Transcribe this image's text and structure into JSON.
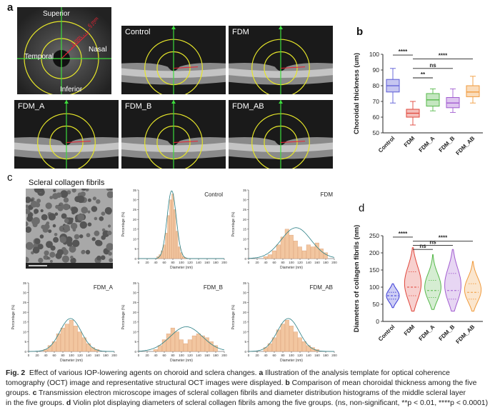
{
  "panel_a": {
    "letter": "a",
    "fundus": {
      "superior": "Superior",
      "nasal": "Nasal",
      "temporal": "Temporal",
      "inferior": "Inferior",
      "ring1": "6 mm",
      "ring2": "3 mm"
    },
    "oct_labels": [
      "Control",
      "FDM",
      "FDM_A",
      "FDM_B",
      "FDM_AB"
    ]
  },
  "panel_b": {
    "letter": "b",
    "ylabel": "Choroidal thickness (um)",
    "yticks": [
      "100",
      "90",
      "80",
      "70",
      "60",
      "50"
    ],
    "categories": [
      "Control",
      "FDM",
      "FDM_A",
      "FDM_B",
      "FDM_AB"
    ],
    "sig": [
      "****",
      "****",
      "ns",
      "**"
    ]
  },
  "panel_c": {
    "letter": "c",
    "tem_title": "Scleral collagen fibrils",
    "ylabel": "Percentage (%)",
    "xlabel": "Diameter (nm)",
    "hist_titles": [
      "Control",
      "FDM",
      "FDM_A",
      "FDM_B",
      "FDM_AB"
    ],
    "xticks": [
      "0",
      "20",
      "40",
      "60",
      "80",
      "100",
      "120",
      "140",
      "160",
      "180",
      "200"
    ],
    "yticks": [
      "35",
      "30",
      "25",
      "20",
      "15",
      "10",
      "5",
      "0"
    ]
  },
  "panel_d": {
    "letter": "d",
    "ylabel": "Diameters of collagen fibrils (nm)",
    "yticks": [
      "250",
      "200",
      "150",
      "100",
      "50",
      "0"
    ],
    "categories": [
      "Control",
      "FDM",
      "FDM_A",
      "FDM_B",
      "FDM_AB"
    ],
    "sig": [
      "****",
      "****",
      "ns",
      "ns"
    ]
  },
  "caption": {
    "fig": "Fig. 2",
    "line1": "Effect of various IOP-lowering agents on choroid and sclera changes.",
    "a_bold": "a",
    "line1b": "Illustration of the analysis template for optical coherence",
    "line2": "tomography (OCT) image and representative structural OCT images were displayed.",
    "b_bold": "b",
    "line2b": "Comparison of mean choroidal thickness among the five",
    "line3": "groups.",
    "c_bold": "c",
    "line3b": "Transmission electron microscope images of scleral collagen fibrils and diameter distribution histograms of the middle scleral layer",
    "line4": "in the five groups.",
    "d_bold": "d",
    "line4b": "Violin plot displaying diameters of scleral collagen fibrils among the five groups. (ns, non-significant, **p < 0.01, ****p < 0.0001)"
  },
  "chart_data": [
    {
      "type": "box",
      "title": "",
      "ylabel": "Choroidal thickness (um)",
      "ylim": [
        50,
        100
      ],
      "categories": [
        "Control",
        "FDM",
        "FDM_A",
        "FDM_B",
        "FDM_AB"
      ],
      "colors": [
        "#5b5bd6",
        "#e0453a",
        "#56b84a",
        "#a15bd0",
        "#f09a3c"
      ],
      "min": [
        69,
        55,
        64,
        63,
        69
      ],
      "q1": [
        76,
        60,
        67,
        66,
        73
      ],
      "median": [
        80,
        62.5,
        71,
        69,
        76
      ],
      "q3": [
        84,
        65,
        75,
        72.5,
        80
      ],
      "max": [
        91,
        70,
        78,
        78,
        86
      ]
    },
    {
      "type": "violin",
      "ylabel": "Diameters of collagen fibrils (nm)",
      "ylim": [
        0,
        250
      ],
      "categories": [
        "Control",
        "FDM",
        "FDM_A",
        "FDM_B",
        "FDM_AB"
      ],
      "colors": [
        "#3b3bd6",
        "#e0453a",
        "#56b84a",
        "#a15bd0",
        "#f09a3c"
      ],
      "min": [
        40,
        30,
        35,
        30,
        30
      ],
      "q1": [
        65,
        75,
        70,
        65,
        65
      ],
      "median": [
        75,
        100,
        90,
        90,
        85
      ],
      "q3": [
        85,
        145,
        120,
        140,
        110
      ],
      "max": [
        110,
        215,
        195,
        210,
        175
      ]
    },
    {
      "type": "bar",
      "title": "Control",
      "xlabel": "Diameter (nm)",
      "ylabel": "Percentage (%)",
      "ylim": [
        0,
        35
      ],
      "bin_centers": [
        45,
        50,
        55,
        60,
        65,
        70,
        75,
        80,
        85,
        90,
        95,
        100,
        105,
        110
      ],
      "values": [
        1,
        2,
        4,
        7,
        13,
        22,
        30,
        33,
        25,
        14,
        6,
        3,
        1,
        0.5
      ]
    },
    {
      "type": "bar",
      "title": "FDM",
      "xlabel": "Diameter (nm)",
      "ylabel": "Percentage (%)",
      "ylim": [
        0,
        35
      ],
      "bin_centers": [
        40,
        50,
        60,
        70,
        80,
        90,
        100,
        110,
        120,
        130,
        140,
        150,
        160,
        170,
        180
      ],
      "values": [
        1,
        2,
        4,
        7,
        11,
        15,
        12,
        9,
        6,
        4,
        7,
        6,
        8,
        5,
        3
      ]
    },
    {
      "type": "bar",
      "title": "FDM_A",
      "xlabel": "Diameter (nm)",
      "ylabel": "Percentage (%)",
      "ylim": [
        0,
        35
      ],
      "bin_centers": [
        40,
        50,
        60,
        70,
        80,
        90,
        100,
        110,
        120,
        130,
        140,
        150,
        160
      ],
      "values": [
        1,
        3,
        5,
        9,
        12,
        14,
        16,
        13,
        10,
        7,
        4,
        2,
        1
      ]
    },
    {
      "type": "bar",
      "title": "FDM_B",
      "xlabel": "Diameter (nm)",
      "ylabel": "Percentage (%)",
      "ylim": [
        0,
        35
      ],
      "bin_centers": [
        40,
        50,
        60,
        70,
        80,
        90,
        100,
        110,
        120,
        130,
        140,
        150,
        160,
        170,
        180
      ],
      "values": [
        1,
        3,
        6,
        9,
        12,
        10,
        6,
        4,
        6,
        8,
        9,
        8,
        7,
        5,
        3
      ]
    },
    {
      "type": "bar",
      "title": "FDM_AB",
      "xlabel": "Diameter (nm)",
      "ylabel": "Percentage (%)",
      "ylim": [
        0,
        35
      ],
      "bin_centers": [
        40,
        50,
        60,
        70,
        80,
        90,
        100,
        110,
        120,
        130,
        140,
        150,
        160
      ],
      "values": [
        2,
        4,
        7,
        11,
        14,
        16,
        13,
        10,
        7,
        5,
        3,
        2,
        1
      ]
    }
  ]
}
